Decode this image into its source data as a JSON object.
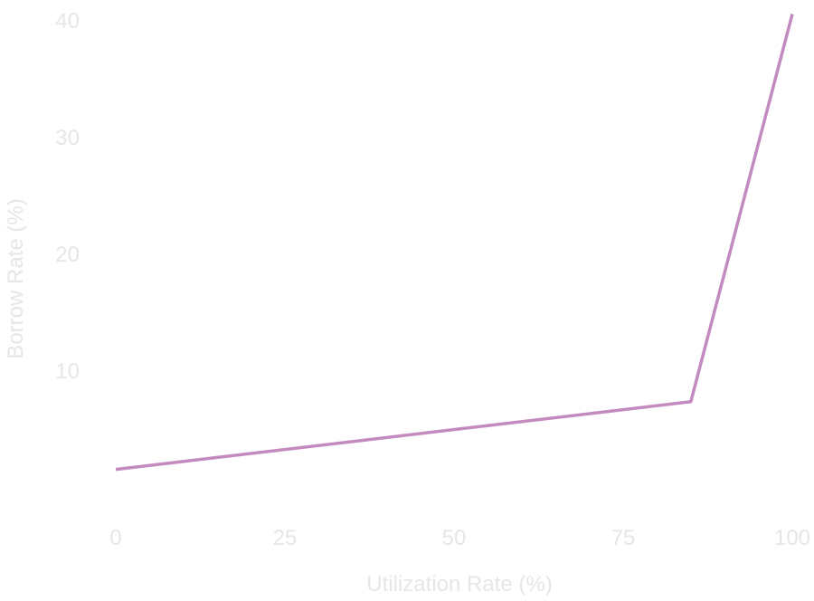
{
  "chart_data": {
    "type": "line",
    "xlabel": "Utilization Rate (%)",
    "ylabel": "Borrow Rate (%)",
    "xlim": [
      0,
      100
    ],
    "ylim": [
      0,
      40
    ],
    "x_ticks": [
      "0",
      "25",
      "50",
      "75",
      "100"
    ],
    "y_ticks": [
      "10",
      "20",
      "30",
      "40"
    ],
    "grid": false,
    "legend": "none",
    "series": [
      {
        "color": "#c38ac0",
        "points": [
          {
            "x": 0,
            "y": 1.5
          },
          {
            "x": 85,
            "y": 7.3
          },
          {
            "x": 100,
            "y": 40.5
          }
        ]
      }
    ]
  }
}
